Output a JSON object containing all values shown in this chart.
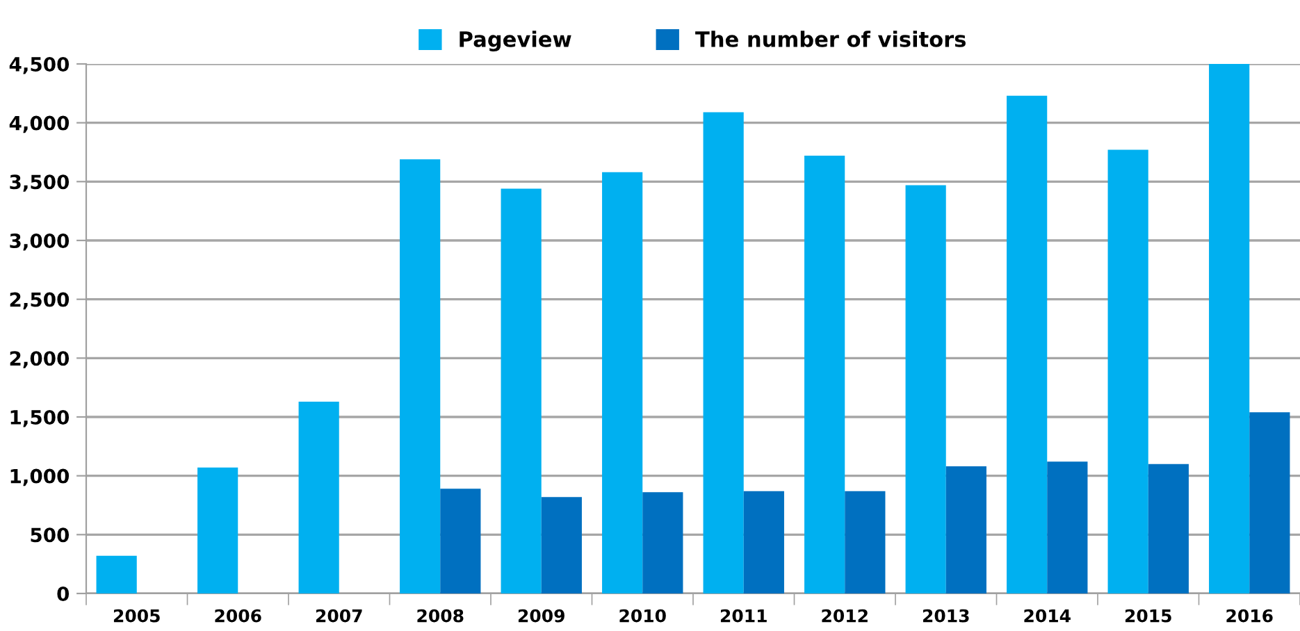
{
  "chart_data": {
    "type": "bar",
    "categories": [
      "2005",
      "2006",
      "2007",
      "2008",
      "2009",
      "2010",
      "2011",
      "2012",
      "2013",
      "2014",
      "2015",
      "2016"
    ],
    "series": [
      {
        "name": "Pageview",
        "color": "#00b0f0",
        "values": [
          320,
          1070,
          1630,
          3690,
          3440,
          3580,
          4090,
          3720,
          3470,
          4230,
          3770,
          4500
        ]
      },
      {
        "name": "The number of visitors",
        "color": "#0070c0",
        "values": [
          null,
          null,
          null,
          890,
          820,
          860,
          870,
          870,
          1080,
          1120,
          1100,
          1540
        ]
      }
    ],
    "ylim": [
      0,
      4500
    ],
    "yticks": [
      {
        "value": 0,
        "label": "0"
      },
      {
        "value": 500,
        "label": "500"
      },
      {
        "value": 1000,
        "label": "1,000"
      },
      {
        "value": 1500,
        "label": "1,500"
      },
      {
        "value": 2000,
        "label": "2,000"
      },
      {
        "value": 2500,
        "label": "2,500"
      },
      {
        "value": 3000,
        "label": "3,000"
      },
      {
        "value": 3500,
        "label": "3,500"
      },
      {
        "value": 4000,
        "label": "4,000"
      },
      {
        "value": 4500,
        "label": "4,500"
      }
    ],
    "grid": "y",
    "legend": "top"
  }
}
